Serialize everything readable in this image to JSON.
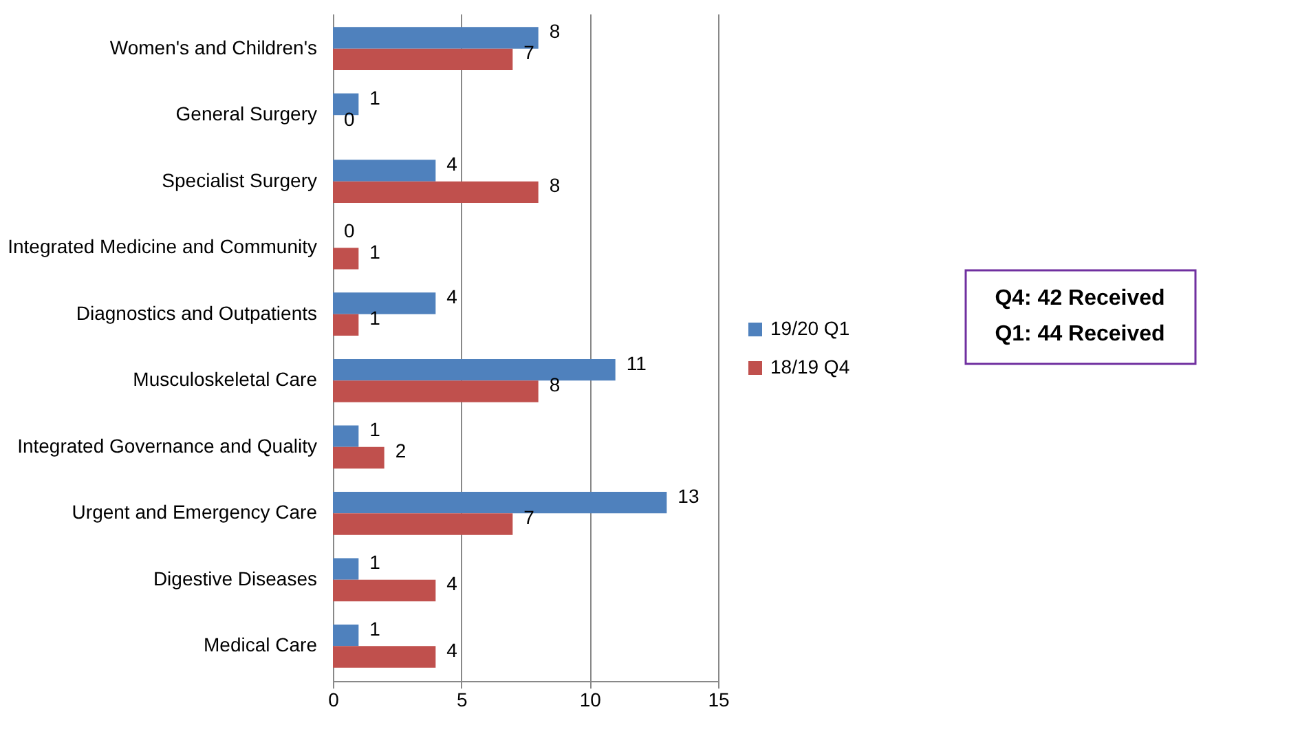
{
  "chart_data": {
    "type": "bar",
    "orientation": "horizontal",
    "categories": [
      "Women's and Children's",
      "General Surgery",
      "Specialist Surgery",
      "Integrated Medicine and Community",
      "Diagnostics and Outpatients",
      "Musculoskeletal Care",
      "Integrated Governance and Quality",
      "Urgent and Emergency Care",
      "Digestive Diseases",
      "Medical Care"
    ],
    "series": [
      {
        "name": "19/20 Q1",
        "color": "#4f81bd",
        "values": [
          8,
          1,
          4,
          0,
          4,
          11,
          1,
          13,
          1,
          1
        ]
      },
      {
        "name": "18/19 Q4",
        "color": "#c0504d",
        "values": [
          7,
          0,
          8,
          1,
          1,
          8,
          2,
          7,
          4,
          4
        ]
      }
    ],
    "xlim": [
      0,
      15
    ],
    "xticks": [
      0,
      5,
      10,
      15
    ],
    "grid": "x",
    "legend": "right",
    "data_labels": true,
    "annotations": [
      "Q4: 42 Received",
      "Q1: 44 Received"
    ]
  }
}
